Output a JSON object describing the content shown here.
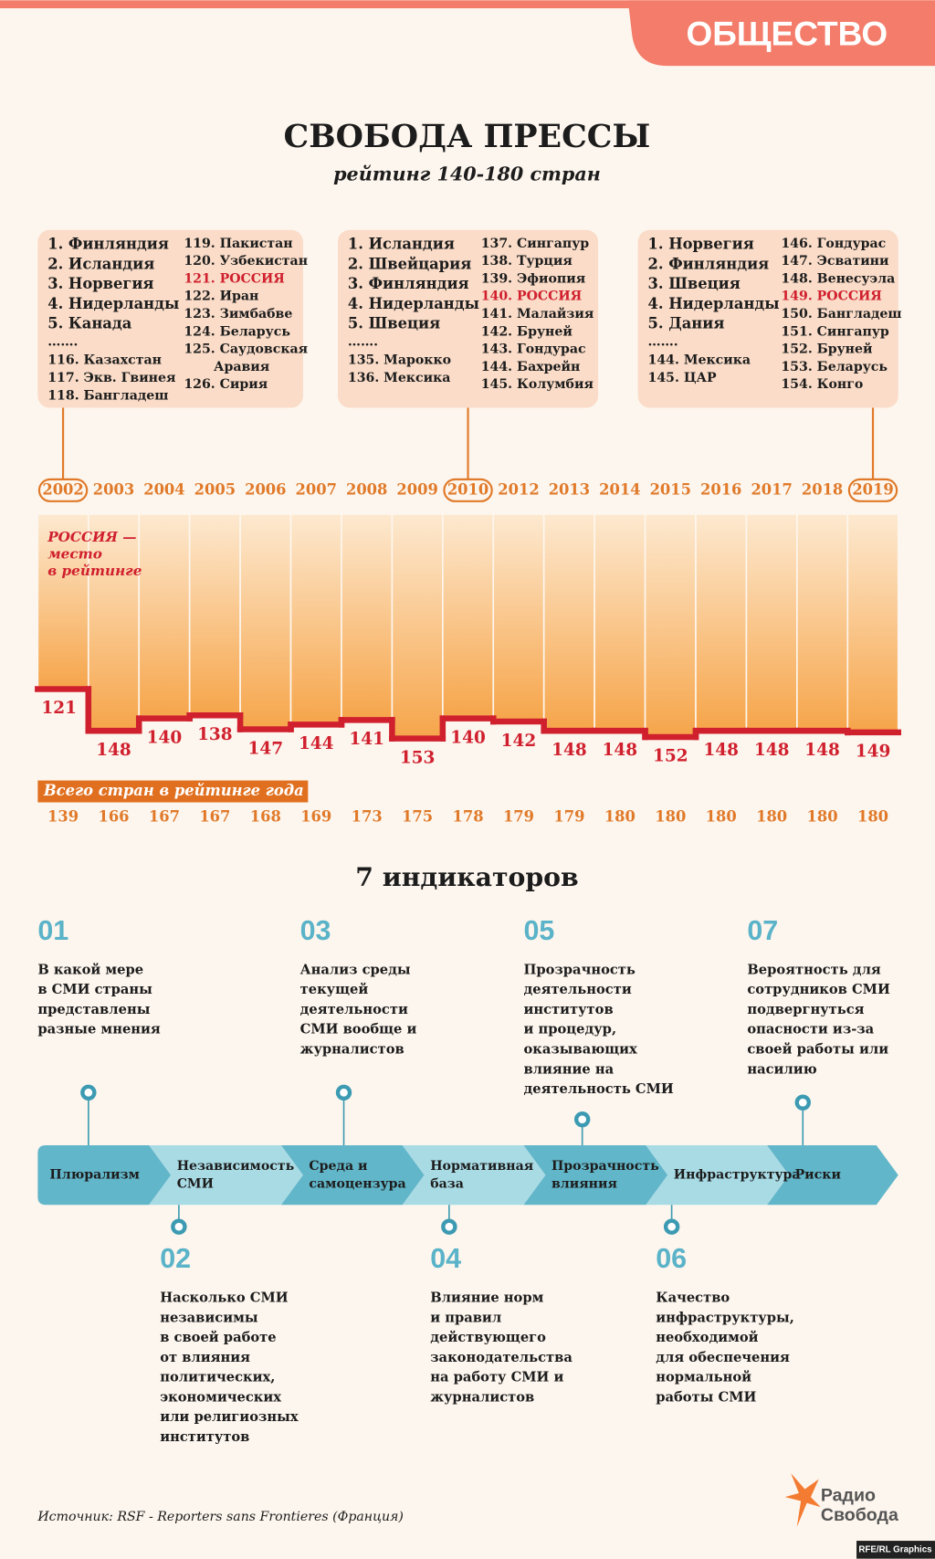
{
  "header": {
    "section": "ОБЩЕСТВО",
    "title": "СВОБОДА ПРЕССЫ",
    "subtitle": "рейтинг 140-180 стран"
  },
  "rank_boxes": [
    {
      "year": "2002",
      "left": [
        "1. Финляндия",
        "2. Исландия",
        "3. Норвегия",
        "4. Нидерланды",
        "5. Канада",
        "…….",
        "116. Казахстан",
        "117. Экв. Гвинея",
        "118. Бангладеш"
      ],
      "right_before": [
        "119. Пакистан",
        "120. Узбекистан"
      ],
      "russia": "121. РОССИЯ",
      "right_after": [
        "122. Иран",
        "123. Зимбабве",
        "124. Беларусь",
        "125. Саудовская",
        "Аравия",
        "126. Сирия"
      ]
    },
    {
      "year": "2010",
      "left": [
        "1. Исландия",
        "2. Швейцария",
        "3. Финляндия",
        "4. Нидерланды",
        "5. Швеция",
        "…….",
        "135. Марокко",
        "136. Мексика"
      ],
      "right_before": [
        "137. Сингапур",
        "138. Турция",
        "139. Эфиопия"
      ],
      "russia": "140. РОССИЯ",
      "right_after": [
        "141. Малайзия",
        "142. Бруней",
        "143. Гондурас",
        "144. Бахрейн",
        "145. Колумбия"
      ]
    },
    {
      "year": "2019",
      "left": [
        "1. Норвегия",
        "2. Финляндия",
        "3. Швеция",
        "4. Нидерланды",
        "5. Дания",
        "…….",
        "144. Мексика",
        "145. ЦАР"
      ],
      "right_before": [
        "146. Гондурас",
        "147. Эсватини",
        "148. Венесуэла"
      ],
      "russia": "149. РОССИЯ",
      "right_after": [
        "150. Бангладеш",
        "151. Сингапур",
        "152. Бруней",
        "153. Беларусь",
        "154. Конго"
      ]
    }
  ],
  "rank_chart": {
    "legend_lines": [
      "РОССИЯ —",
      "место",
      "в рейтинге"
    ],
    "years": [
      "2002",
      "2003",
      "2004",
      "2005",
      "2006",
      "2007",
      "2008",
      "2009",
      "2010",
      "2012",
      "2013",
      "2014",
      "2015",
      "2016",
      "2017",
      "2018",
      "2019"
    ],
    "ranks": [
      121,
      148,
      140,
      138,
      147,
      144,
      141,
      153,
      140,
      142,
      148,
      148,
      152,
      148,
      148,
      148,
      149
    ],
    "totals_label": "Всего стран в рейтинге года",
    "totals": [
      139,
      166,
      167,
      167,
      168,
      169,
      173,
      175,
      178,
      179,
      179,
      180,
      180,
      180,
      180,
      180,
      180
    ]
  },
  "indicators_title": "7 индикаторов",
  "indicators": [
    {
      "number": "01",
      "name": [
        "Плюрализм"
      ],
      "text": [
        "В какой мере",
        "в СМИ страны",
        "представлены",
        "разные мнения"
      ]
    },
    {
      "number": "02",
      "name": [
        "Независимость",
        "СМИ"
      ],
      "text": [
        "Насколько СМИ",
        "независимы",
        "в своей работе",
        "от влияния",
        "политических,",
        "экономических",
        "или религиозных",
        "институтов"
      ]
    },
    {
      "number": "03",
      "name": [
        "Среда и",
        "самоцензура"
      ],
      "text": [
        "Анализ среды",
        "текущей",
        "деятельности",
        "СМИ вообще и",
        "журналистов"
      ]
    },
    {
      "number": "04",
      "name": [
        "Нормативная",
        "база"
      ],
      "text": [
        "Влияние норм",
        "и правил",
        "действующего",
        "законодательства",
        "на работу СМИ и",
        "журналистов"
      ]
    },
    {
      "number": "05",
      "name": [
        "Прозрачность",
        "влияния"
      ],
      "text": [
        "Прозрачность",
        "деятельности",
        "институтов",
        "и процедур,",
        "оказывающих",
        "влияние на",
        "деятельность СМИ"
      ]
    },
    {
      "number": "06",
      "name": [
        "Инфраструктура"
      ],
      "text": [
        "Качество",
        "инфраструктуры,",
        "необходимой",
        "для обеспечения",
        "нормальной",
        "работы СМИ"
      ]
    },
    {
      "number": "07",
      "name": [
        "Риски"
      ],
      "text": [
        "Вероятность для",
        "сотрудников СМИ",
        "подвергнуться",
        "опасности из-за",
        "своей работы или",
        "насилию"
      ]
    }
  ],
  "footer": {
    "source": "Источник: RSF - Reporters sans Frontieres (Франция)",
    "logo": [
      "Радио",
      "Свобода"
    ],
    "credit": "RFE/RL Graphics"
  }
}
